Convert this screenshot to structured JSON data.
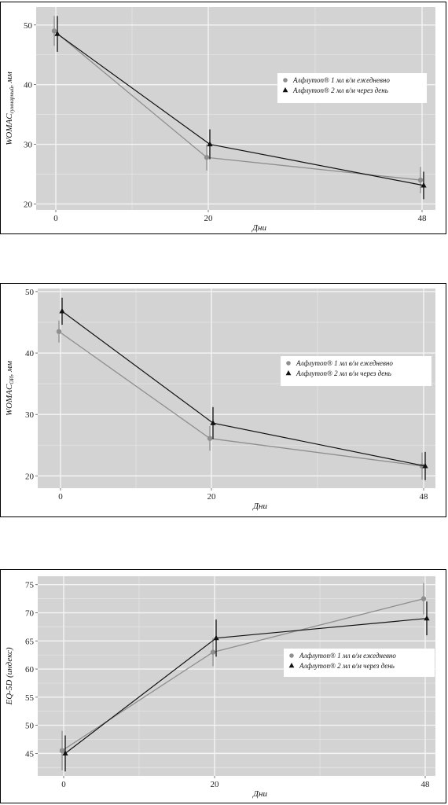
{
  "chart_data": [
    {
      "type": "line",
      "xlabel": "Дни",
      "ylabel": "WOMAC",
      "ylabel_sub": "суммарный",
      "ylabel_suffix": ", мм",
      "x_categories": [
        "0",
        "20",
        "48"
      ],
      "ylim": [
        19,
        53
      ],
      "yticks": [
        20,
        30,
        40,
        50
      ],
      "grid": true,
      "legend_position": "center-right",
      "series": [
        {
          "name": "Алфлутоп® 1 мл в/м ежедневно",
          "color": "#8f8f8f",
          "marker": "circle",
          "values": [
            49.0,
            27.8,
            24.0
          ],
          "error": [
            2.5,
            2.2,
            2.2
          ]
        },
        {
          "name": "Алфлутоп® 2 мл в/м через день",
          "color": "#111111",
          "marker": "triangle",
          "values": [
            48.5,
            30.0,
            23.1
          ],
          "error": [
            3.0,
            2.5,
            2.3
          ]
        }
      ]
    },
    {
      "type": "line",
      "xlabel": "Дни",
      "ylabel": "WOMAC",
      "ylabel_sub": "ОИ",
      "ylabel_suffix": ", мм",
      "x_categories": [
        "0",
        "20",
        "48"
      ],
      "ylim": [
        18,
        50.5
      ],
      "yticks": [
        20,
        30,
        40,
        50
      ],
      "grid": true,
      "legend_position": "center-right",
      "series": [
        {
          "name": "Алфлутоп® 1 мл в/м ежедневно",
          "color": "#8f8f8f",
          "marker": "circle",
          "values": [
            43.5,
            26.1,
            21.6
          ],
          "error": [
            1.8,
            2.0,
            2.2
          ]
        },
        {
          "name": "Алфлутоп® 2 мл в/м через день",
          "color": "#111111",
          "marker": "triangle",
          "values": [
            46.8,
            28.6,
            21.6
          ],
          "error": [
            2.2,
            2.6,
            2.3
          ]
        }
      ]
    },
    {
      "type": "line",
      "xlabel": "Дни",
      "ylabel": "EQ-5D (индекс)",
      "ylabel_sub": "",
      "ylabel_suffix": "",
      "x_categories": [
        "0",
        "20",
        "48"
      ],
      "ylim": [
        41,
        76.5
      ],
      "yticks": [
        45,
        50,
        55,
        60,
        65,
        70,
        75
      ],
      "grid": true,
      "legend_position": "center-right",
      "series": [
        {
          "name": "Алфлутоп® 1 мл в/м ежедневно",
          "color": "#8f8f8f",
          "marker": "circle",
          "values": [
            45.5,
            63.0,
            72.5
          ],
          "error": [
            3.5,
            2.5,
            2.8
          ]
        },
        {
          "name": "Алфлутоп® 2 мл в/м через день",
          "color": "#111111",
          "marker": "triangle",
          "values": [
            45.0,
            65.5,
            69.0
          ],
          "error": [
            3.2,
            3.3,
            3.0
          ]
        }
      ]
    }
  ]
}
